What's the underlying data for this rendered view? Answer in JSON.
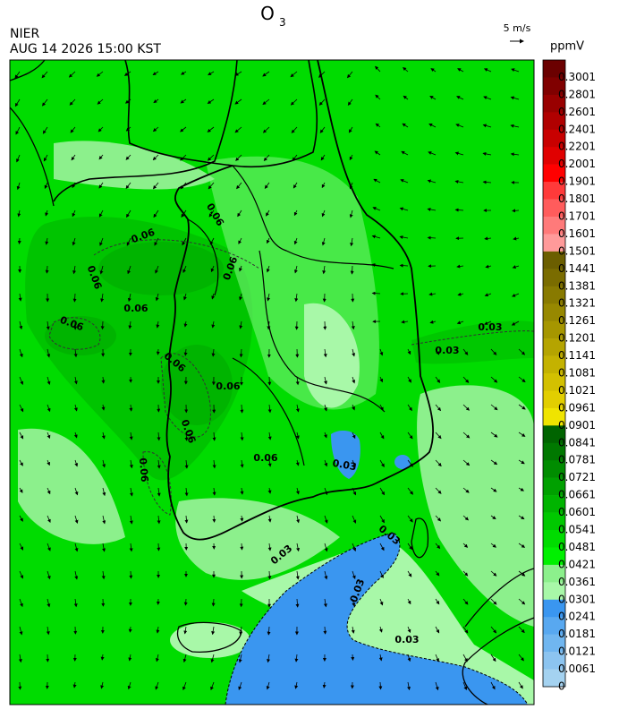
{
  "header": {
    "title": "O",
    "title_subscript": "3",
    "agency": "NIER",
    "datetime": "AUG 14 2026 15:00 KST",
    "vector_scale": "5 m/s"
  },
  "colorbar": {
    "unit": "ppmV",
    "labels": [
      "0.3001",
      "0.2801",
      "0.2601",
      "0.2401",
      "0.2201",
      "0.2001",
      "0.1901",
      "0.1801",
      "0.1701",
      "0.1601",
      "0.1501",
      "0.1441",
      "0.1381",
      "0.1321",
      "0.1261",
      "0.1201",
      "0.1141",
      "0.1081",
      "0.1021",
      "0.0961",
      "0.0901",
      "0.0841",
      "0.0781",
      "0.0721",
      "0.0661",
      "0.0601",
      "0.0541",
      "0.0481",
      "0.0421",
      "0.0361",
      "0.0301",
      "0.0241",
      "0.0181",
      "0.0121",
      "0.0061",
      "0"
    ],
    "colors": [
      "#6b0000",
      "#800000",
      "#990000",
      "#b00000",
      "#c80000",
      "#e00000",
      "#ff0000",
      "#ff3a3a",
      "#ff5c5c",
      "#ff7a7a",
      "#ff9a9a",
      "#6b5e00",
      "#7a6c00",
      "#887a00",
      "#978800",
      "#a69600",
      "#b5a400",
      "#c4b200",
      "#d3c000",
      "#e2ce00",
      "#f0e400",
      "#006400",
      "#007800",
      "#008c00",
      "#00a000",
      "#00b400",
      "#00c800",
      "#00dc00",
      "#00f000",
      "#8cf08c",
      "#a8f8a8",
      "#3a96f0",
      "#58a8f0",
      "#70b6f0",
      "#8cc4f0",
      "#a4d2f0"
    ]
  },
  "contour_labels": [
    "0.06",
    "0.06",
    "0.06",
    "0.06",
    "0.06",
    "0.06",
    "0.06",
    "0.06",
    "0.06",
    "0.06",
    "0.06",
    "0.03",
    "0.03",
    "0.03",
    "0.03",
    "0.03",
    "0.03",
    "0.03"
  ]
}
